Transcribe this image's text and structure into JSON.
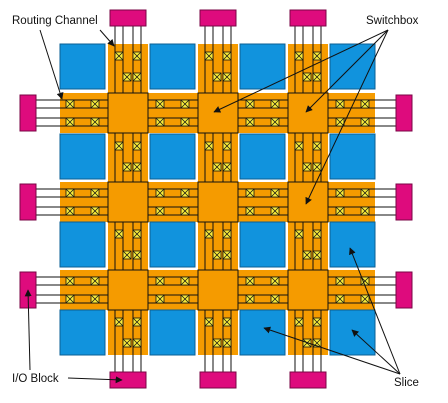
{
  "labels": {
    "routing_channel": "Routing Channel",
    "switchbox": "Switchbox",
    "io_block": "I/O Block",
    "slice": "Slice"
  },
  "colors": {
    "slice_blue": "#1193dd",
    "routing_orange": "#f59b00",
    "io_magenta": "#de0b7d",
    "switch_yellow": "#f7ea3a",
    "wire": "#111111",
    "background": "#ffffff"
  },
  "grid": {
    "slice_rows": 4,
    "slice_cols": 4,
    "horizontal_channels": 3,
    "vertical_channels": 3,
    "wires_per_channel": 4
  },
  "io_blocks": {
    "top": 3,
    "bottom": 3,
    "left": 3,
    "right": 3
  }
}
